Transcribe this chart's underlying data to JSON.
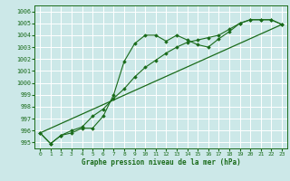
{
  "title": "Graphe pression niveau de la mer (hPa)",
  "background_color": "#cce8e8",
  "grid_color": "#ffffff",
  "line_color": "#1a6b1a",
  "xlim": [
    -0.5,
    23.5
  ],
  "ylim": [
    994.5,
    1006.5
  ],
  "xticks": [
    0,
    1,
    2,
    3,
    4,
    5,
    6,
    7,
    8,
    9,
    10,
    11,
    12,
    13,
    14,
    15,
    16,
    17,
    18,
    19,
    20,
    21,
    22,
    23
  ],
  "yticks": [
    995,
    996,
    997,
    998,
    999,
    1000,
    1001,
    1002,
    1003,
    1004,
    1005,
    1006
  ],
  "series1_x": [
    0,
    1,
    2,
    3,
    4,
    5,
    6,
    7,
    8,
    9,
    10,
    11,
    12,
    13,
    14,
    15,
    16,
    17,
    18,
    19,
    20,
    21,
    22,
    23
  ],
  "series1_y": [
    995.8,
    994.9,
    995.6,
    995.8,
    996.2,
    996.2,
    997.2,
    999.0,
    1001.8,
    1003.3,
    1004.0,
    1004.0,
    1003.5,
    1004.0,
    1003.6,
    1003.2,
    1003.0,
    1003.7,
    1004.3,
    1005.0,
    1005.3,
    1005.3,
    1005.3,
    1004.9
  ],
  "series2_x": [
    0,
    1,
    2,
    3,
    4,
    5,
    6,
    7,
    8,
    9,
    10,
    11,
    12,
    13,
    14,
    15,
    16,
    17,
    18,
    19,
    20,
    21,
    22,
    23
  ],
  "series2_y": [
    995.8,
    994.9,
    995.6,
    996.0,
    996.3,
    997.2,
    997.8,
    998.7,
    999.5,
    1000.5,
    1001.3,
    1001.9,
    1002.5,
    1003.0,
    1003.4,
    1003.6,
    1003.8,
    1004.0,
    1004.5,
    1005.0,
    1005.3,
    1005.3,
    1005.3,
    1004.9
  ],
  "series3_x": [
    0,
    23
  ],
  "series3_y": [
    995.8,
    1004.9
  ]
}
